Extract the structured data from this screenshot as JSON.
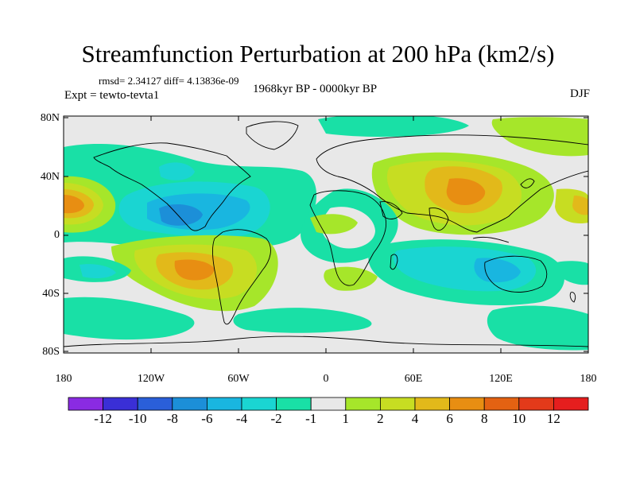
{
  "title": "Streamfunction Perturbation at 200 hPa (km2/s)",
  "subtitle_stats": "rmsd= 2.34127 diff= 4.13836e-09",
  "experiment": "Expt = tewto-tevta1",
  "period": "1968kyr BP - 0000kyr BP",
  "season": "DJF",
  "lat_labels": [
    "80N",
    "40N",
    "0",
    "40S",
    "80S"
  ],
  "lon_labels": [
    "180",
    "120W",
    "60W",
    "0",
    "60E",
    "120E",
    "180"
  ],
  "colorbar": {
    "labels": [
      "-12",
      "-10",
      "-8",
      "-6",
      "-4",
      "-2",
      "-1",
      "1",
      "2",
      "4",
      "6",
      "8",
      "10",
      "12"
    ],
    "colors": [
      "#8a2be2",
      "#3a2fd6",
      "#2a5fd9",
      "#1c8fd8",
      "#19b6e0",
      "#1ad5d2",
      "#19e0a6",
      "#e8e8e8",
      "#a6e62a",
      "#c7dd22",
      "#e2b91a",
      "#e88e12",
      "#e46212",
      "#e33a1a",
      "#e51e1e"
    ]
  },
  "field_levels": {
    "neutral": "#e8e8e8",
    "neg1": "#19e0a6",
    "neg2": "#1ad5d2",
    "neg3": "#19b6e0",
    "neg4": "#1c8fd8",
    "pos1": "#a6e62a",
    "pos2": "#c7dd22",
    "pos3": "#e2b91a",
    "pos4": "#e88e12",
    "pos5": "#e46212",
    "pos6": "#e33a1a"
  }
}
